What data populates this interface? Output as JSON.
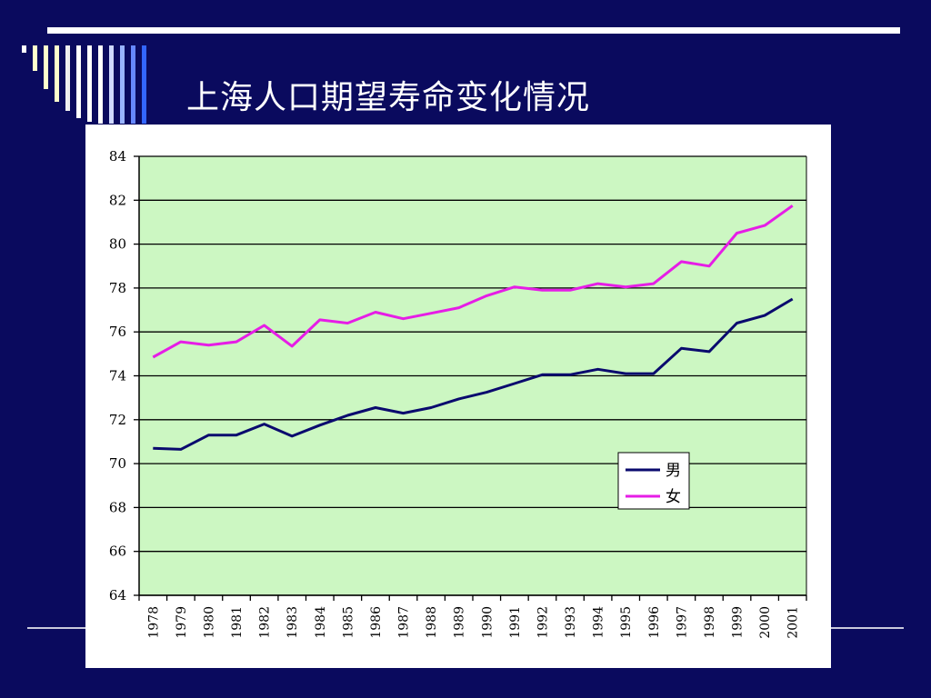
{
  "slide": {
    "title": "上海人口期望寿命变化情况",
    "colors": {
      "background": "#0a0a5e",
      "plot_background": "#ccf7c2",
      "male": "#0a0a6e",
      "female": "#e61de6"
    }
  },
  "chart_data": {
    "type": "line",
    "title": "",
    "xlabel": "",
    "ylabel": "",
    "categories": [
      "1978",
      "1979",
      "1980",
      "1981",
      "1982",
      "1983",
      "1984",
      "1985",
      "1986",
      "1987",
      "1988",
      "1989",
      "1990",
      "1991",
      "1992",
      "1993",
      "1994",
      "1995",
      "1996",
      "1997",
      "1998",
      "1999",
      "2000",
      "2001"
    ],
    "series": [
      {
        "name": "男",
        "color": "#0a0a6e",
        "values": [
          70.7,
          70.65,
          71.3,
          71.3,
          71.8,
          71.25,
          71.75,
          72.2,
          72.55,
          72.3,
          72.55,
          72.95,
          73.25,
          73.65,
          74.05,
          74.05,
          74.3,
          74.1,
          74.1,
          75.25,
          75.1,
          76.4,
          76.75,
          77.5
        ]
      },
      {
        "name": "女",
        "color": "#e61de6",
        "values": [
          74.85,
          75.55,
          75.4,
          75.55,
          76.3,
          75.35,
          76.55,
          76.4,
          76.9,
          76.6,
          76.85,
          77.1,
          77.65,
          78.05,
          77.9,
          77.9,
          78.2,
          78.05,
          78.2,
          79.2,
          79,
          80.5,
          80.85,
          81.75
        ]
      }
    ],
    "ylim": [
      64,
      84
    ],
    "yticks": [
      "64",
      "66",
      "68",
      "70",
      "72",
      "74",
      "76",
      "78",
      "80",
      "82",
      "84"
    ],
    "grid": true,
    "legend_position": "lower-right"
  }
}
